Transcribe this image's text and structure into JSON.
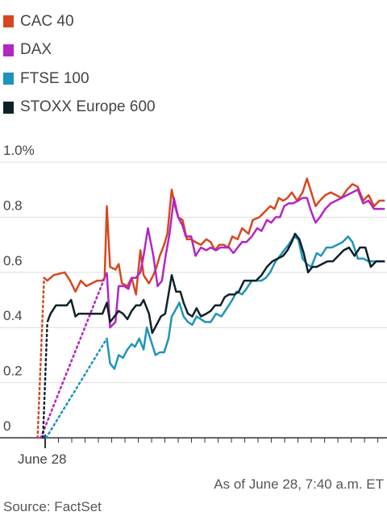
{
  "chart_data": {
    "type": "line",
    "ylim": [
      0,
      1.0
    ],
    "xlim": [
      -8,
      320
    ],
    "yticks": [
      {
        "value": 1.0,
        "label": "1.0%"
      },
      {
        "value": 0.8,
        "label": "0.8"
      },
      {
        "value": 0.6,
        "label": "0.6"
      },
      {
        "value": 0.4,
        "label": "0.4"
      },
      {
        "value": 0.2,
        "label": "0.2"
      },
      {
        "value": 0,
        "label": "0"
      }
    ],
    "xtick_label": "June 28",
    "grid": true,
    "legend_position": "top-left",
    "series": [
      {
        "name": "CAC 40",
        "color": "#d6471e",
        "gap_from": 0.5,
        "points": [
          [
            -5,
            0
          ],
          [
            1,
            0.58
          ],
          [
            4,
            0.57
          ],
          [
            10,
            0.59
          ],
          [
            20,
            0.6
          ],
          [
            25,
            0.57
          ],
          [
            30,
            0.53
          ],
          [
            35,
            0.57
          ],
          [
            40,
            0.55
          ],
          [
            45,
            0.56
          ],
          [
            50,
            0.57
          ],
          [
            55,
            0.57
          ],
          [
            57,
            0.58
          ],
          [
            59,
            0.84
          ],
          [
            62,
            0.62
          ],
          [
            67,
            0.61
          ],
          [
            70,
            0.63
          ],
          [
            73,
            0.56
          ],
          [
            78,
            0.55
          ],
          [
            82,
            0.58
          ],
          [
            86,
            0.52
          ],
          [
            90,
            0.68
          ],
          [
            93,
            0.59
          ],
          [
            98,
            0.56
          ],
          [
            102,
            0.59
          ],
          [
            105,
            0.62
          ],
          [
            108,
            0.66
          ],
          [
            112,
            0.7
          ],
          [
            115,
            0.74
          ],
          [
            119,
            0.9
          ],
          [
            122,
            0.84
          ],
          [
            125,
            0.8
          ],
          [
            129,
            0.79
          ],
          [
            133,
            0.72
          ],
          [
            137,
            0.72
          ],
          [
            141,
            0.71
          ],
          [
            146,
            0.7
          ],
          [
            151,
            0.72
          ],
          [
            155,
            0.71
          ],
          [
            159,
            0.68
          ],
          [
            163,
            0.7
          ],
          [
            167,
            0.7
          ],
          [
            171,
            0.69
          ],
          [
            175,
            0.73
          ],
          [
            180,
            0.72
          ],
          [
            184,
            0.76
          ],
          [
            190,
            0.74
          ],
          [
            194,
            0.79
          ],
          [
            200,
            0.8
          ],
          [
            205,
            0.82
          ],
          [
            210,
            0.84
          ],
          [
            214,
            0.83
          ],
          [
            218,
            0.87
          ],
          [
            222,
            0.86
          ],
          [
            226,
            0.87
          ],
          [
            230,
            0.89
          ],
          [
            235,
            0.86
          ],
          [
            240,
            0.89
          ],
          [
            244,
            0.94
          ],
          [
            248,
            0.89
          ],
          [
            252,
            0.84
          ],
          [
            256,
            0.86
          ],
          [
            261,
            0.88
          ],
          [
            266,
            0.89
          ],
          [
            271,
            0.88
          ],
          [
            276,
            0.87
          ],
          [
            281,
            0.9
          ],
          [
            286,
            0.92
          ],
          [
            291,
            0.91
          ],
          [
            296,
            0.86
          ],
          [
            301,
            0.88
          ],
          [
            306,
            0.84
          ],
          [
            311,
            0.86
          ],
          [
            316,
            0.86
          ]
        ]
      },
      {
        "name": "DAX",
        "color": "#b226c4",
        "gap_from": 0.6,
        "points": [
          [
            -2,
            0
          ],
          [
            59,
            0.6
          ],
          [
            62,
            0.4
          ],
          [
            67,
            0.42
          ],
          [
            70,
            0.55
          ],
          [
            75,
            0.55
          ],
          [
            79,
            0.54
          ],
          [
            82,
            0.58
          ],
          [
            86,
            0.58
          ],
          [
            90,
            0.6
          ],
          [
            93,
            0.66
          ],
          [
            97,
            0.76
          ],
          [
            102,
            0.66
          ],
          [
            106,
            0.55
          ],
          [
            110,
            0.57
          ],
          [
            113,
            0.65
          ],
          [
            117,
            0.74
          ],
          [
            121,
            0.87
          ],
          [
            125,
            0.8
          ],
          [
            129,
            0.77
          ],
          [
            132,
            0.73
          ],
          [
            137,
            0.73
          ],
          [
            141,
            0.66
          ],
          [
            146,
            0.69
          ],
          [
            151,
            0.68
          ],
          [
            155,
            0.69
          ],
          [
            160,
            0.68
          ],
          [
            164,
            0.69
          ],
          [
            168,
            0.69
          ],
          [
            172,
            0.69
          ],
          [
            176,
            0.67
          ],
          [
            180,
            0.69
          ],
          [
            184,
            0.71
          ],
          [
            188,
            0.71
          ],
          [
            193,
            0.73
          ],
          [
            198,
            0.76
          ],
          [
            202,
            0.75
          ],
          [
            207,
            0.79
          ],
          [
            211,
            0.78
          ],
          [
            215,
            0.8
          ],
          [
            219,
            0.8
          ],
          [
            223,
            0.84
          ],
          [
            227,
            0.85
          ],
          [
            231,
            0.85
          ],
          [
            236,
            0.86
          ],
          [
            240,
            0.87
          ],
          [
            244,
            0.87
          ],
          [
            248,
            0.82
          ],
          [
            252,
            0.78
          ],
          [
            256,
            0.8
          ],
          [
            261,
            0.83
          ],
          [
            266,
            0.85
          ],
          [
            271,
            0.86
          ],
          [
            276,
            0.87
          ],
          [
            281,
            0.88
          ],
          [
            286,
            0.89
          ],
          [
            291,
            0.9
          ],
          [
            296,
            0.85
          ],
          [
            301,
            0.86
          ],
          [
            306,
            0.83
          ],
          [
            311,
            0.83
          ],
          [
            316,
            0.83
          ]
        ]
      },
      {
        "name": "FTSE 100",
        "color": "#1e94ba",
        "gap_from": 0.36,
        "points": [
          [
            3,
            0
          ],
          [
            59,
            0.36
          ],
          [
            62,
            0.27
          ],
          [
            66,
            0.25
          ],
          [
            70,
            0.3
          ],
          [
            74,
            0.29
          ],
          [
            78,
            0.32
          ],
          [
            82,
            0.34
          ],
          [
            85,
            0.33
          ],
          [
            89,
            0.36
          ],
          [
            93,
            0.32
          ],
          [
            96,
            0.4
          ],
          [
            100,
            0.35
          ],
          [
            104,
            0.3
          ],
          [
            108,
            0.31
          ],
          [
            112,
            0.31
          ],
          [
            116,
            0.36
          ],
          [
            119,
            0.44
          ],
          [
            122,
            0.46
          ],
          [
            126,
            0.49
          ],
          [
            130,
            0.44
          ],
          [
            134,
            0.42
          ],
          [
            138,
            0.41
          ],
          [
            142,
            0.44
          ],
          [
            146,
            0.43
          ],
          [
            150,
            0.42
          ],
          [
            155,
            0.42
          ],
          [
            160,
            0.45
          ],
          [
            165,
            0.44
          ],
          [
            170,
            0.47
          ],
          [
            175,
            0.5
          ],
          [
            179,
            0.53
          ],
          [
            184,
            0.52
          ],
          [
            188,
            0.54
          ],
          [
            193,
            0.57
          ],
          [
            197,
            0.57
          ],
          [
            202,
            0.57
          ],
          [
            206,
            0.58
          ],
          [
            210,
            0.6
          ],
          [
            215,
            0.64
          ],
          [
            219,
            0.66
          ],
          [
            223,
            0.68
          ],
          [
            227,
            0.7
          ],
          [
            232,
            0.73
          ],
          [
            236,
            0.72
          ],
          [
            240,
            0.65
          ],
          [
            244,
            0.63
          ],
          [
            248,
            0.62
          ],
          [
            253,
            0.67
          ],
          [
            257,
            0.66
          ],
          [
            262,
            0.69
          ],
          [
            267,
            0.69
          ],
          [
            272,
            0.7
          ],
          [
            277,
            0.71
          ],
          [
            282,
            0.73
          ],
          [
            286,
            0.71
          ],
          [
            291,
            0.65
          ],
          [
            296,
            0.65
          ],
          [
            301,
            0.64
          ],
          [
            306,
            0.64
          ],
          [
            311,
            0.64
          ],
          [
            316,
            0.64
          ]
        ]
      },
      {
        "name": "STOXX Europe 600",
        "color": "#0d2228",
        "gap_from": 0.48,
        "points": [
          [
            0,
            0
          ],
          [
            4,
            0.42
          ],
          [
            7,
            0.45
          ],
          [
            12,
            0.48
          ],
          [
            18,
            0.48
          ],
          [
            22,
            0.48
          ],
          [
            26,
            0.5
          ],
          [
            30,
            0.44
          ],
          [
            33,
            0.45
          ],
          [
            38,
            0.45
          ],
          [
            44,
            0.45
          ],
          [
            50,
            0.45
          ],
          [
            55,
            0.45
          ],
          [
            59,
            0.49
          ],
          [
            62,
            0.42
          ],
          [
            66,
            0.44
          ],
          [
            70,
            0.46
          ],
          [
            74,
            0.45
          ],
          [
            78,
            0.43
          ],
          [
            82,
            0.46
          ],
          [
            86,
            0.48
          ],
          [
            90,
            0.48
          ],
          [
            93,
            0.5
          ],
          [
            98,
            0.45
          ],
          [
            101,
            0.38
          ],
          [
            105,
            0.41
          ],
          [
            109,
            0.44
          ],
          [
            113,
            0.45
          ],
          [
            116,
            0.52
          ],
          [
            119,
            0.59
          ],
          [
            123,
            0.53
          ],
          [
            127,
            0.53
          ],
          [
            130,
            0.49
          ],
          [
            134,
            0.45
          ],
          [
            138,
            0.44
          ],
          [
            142,
            0.47
          ],
          [
            146,
            0.44
          ],
          [
            151,
            0.45
          ],
          [
            155,
            0.46
          ],
          [
            159,
            0.48
          ],
          [
            164,
            0.48
          ],
          [
            168,
            0.51
          ],
          [
            172,
            0.52
          ],
          [
            177,
            0.52
          ],
          [
            181,
            0.53
          ],
          [
            186,
            0.57
          ],
          [
            191,
            0.57
          ],
          [
            197,
            0.57
          ],
          [
            202,
            0.59
          ],
          [
            207,
            0.62
          ],
          [
            212,
            0.64
          ],
          [
            217,
            0.65
          ],
          [
            222,
            0.66
          ],
          [
            226,
            0.68
          ],
          [
            230,
            0.71
          ],
          [
            233,
            0.74
          ],
          [
            237,
            0.72
          ],
          [
            241,
            0.67
          ],
          [
            245,
            0.6
          ],
          [
            249,
            0.62
          ],
          [
            253,
            0.62
          ],
          [
            258,
            0.63
          ],
          [
            263,
            0.64
          ],
          [
            268,
            0.64
          ],
          [
            273,
            0.66
          ],
          [
            278,
            0.68
          ],
          [
            283,
            0.69
          ],
          [
            288,
            0.66
          ],
          [
            293,
            0.69
          ],
          [
            298,
            0.69
          ],
          [
            303,
            0.62
          ],
          [
            308,
            0.64
          ],
          [
            313,
            0.64
          ],
          [
            316,
            0.64
          ]
        ]
      }
    ]
  },
  "footer": {
    "as_of": "As of June 28, 7:40 a.m. ET",
    "source": "Source: FactSet"
  }
}
